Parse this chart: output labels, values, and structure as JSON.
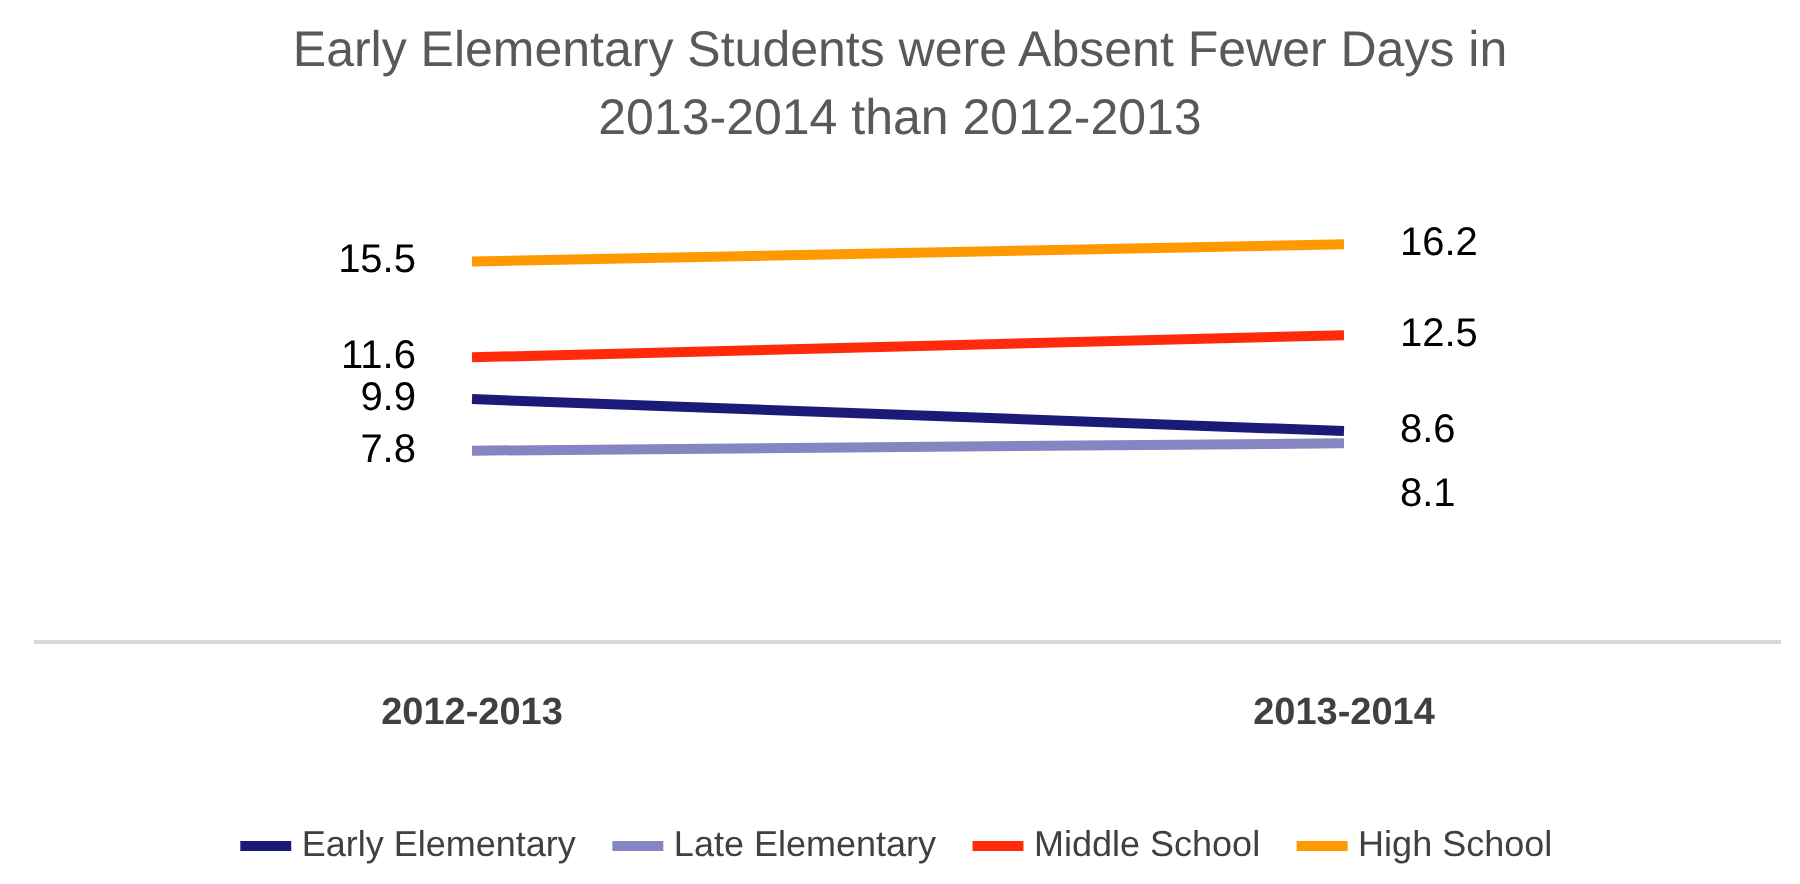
{
  "chart_data": {
    "type": "line",
    "title": "Early Elementary Students were Absent Fewer Days  in 2013-2014 than 2012-2013",
    "categories": [
      "2012-2013",
      "2013-2014"
    ],
    "series": [
      {
        "name": "Early Elementary",
        "color": "#1c1a78",
        "values": [
          9.9,
          8.6
        ]
      },
      {
        "name": "Late Elementary",
        "color": "#8585c2",
        "values": [
          7.8,
          8.1
        ]
      },
      {
        "name": "Middle School",
        "color": "#ff2a0a",
        "values": [
          11.6,
          12.5
        ]
      },
      {
        "name": "High School",
        "color": "#ff9900",
        "values": [
          15.5,
          16.2
        ]
      }
    ],
    "relative": false,
    "data_labels": true,
    "legend": "bottom",
    "grid": false,
    "marker": "none",
    "line_style": "solid"
  }
}
